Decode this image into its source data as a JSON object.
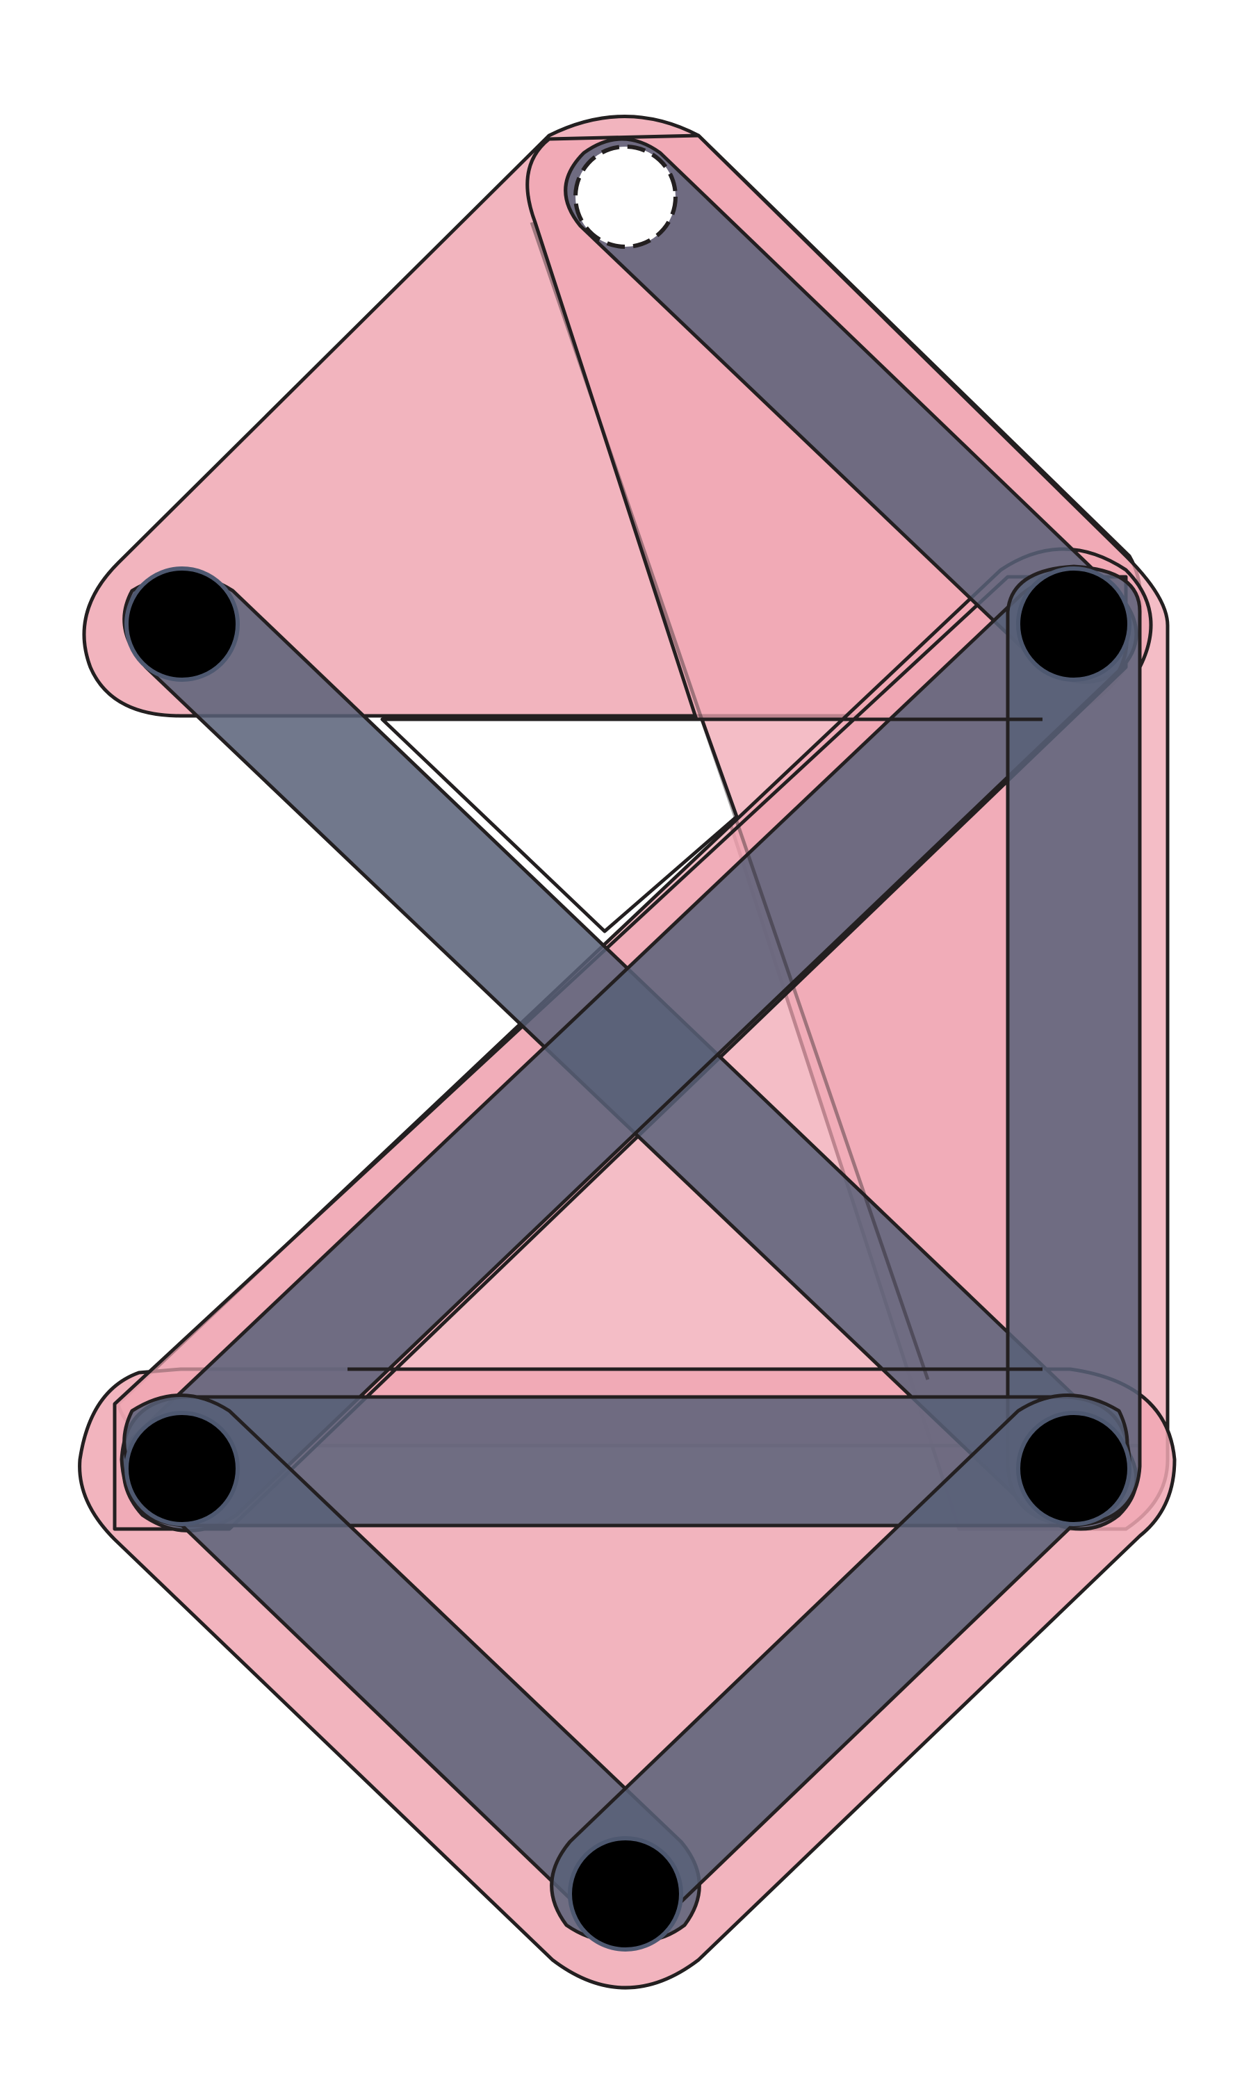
{
  "diagram": {
    "type": "hypergraph",
    "vertices": [
      {
        "id": "v_top",
        "style": "open-dashed"
      },
      {
        "id": "v_left_upper",
        "style": "filled"
      },
      {
        "id": "v_right_upper",
        "style": "filled"
      },
      {
        "id": "v_left_lower",
        "style": "filled"
      },
      {
        "id": "v_right_lower",
        "style": "filled"
      },
      {
        "id": "v_bottom",
        "style": "filled"
      }
    ],
    "edges": [
      {
        "id": "e1",
        "members": [
          "v_top",
          "v_right_upper"
        ]
      },
      {
        "id": "e2",
        "members": [
          "v_left_upper",
          "v_right_lower"
        ]
      },
      {
        "id": "e3",
        "members": [
          "v_right_upper",
          "v_left_lower"
        ]
      },
      {
        "id": "e4",
        "members": [
          "v_right_upper",
          "v_right_lower"
        ]
      },
      {
        "id": "e5",
        "members": [
          "v_left_lower",
          "v_right_lower"
        ]
      },
      {
        "id": "e6",
        "members": [
          "v_left_lower",
          "v_bottom"
        ]
      },
      {
        "id": "e7",
        "members": [
          "v_right_lower",
          "v_bottom"
        ]
      }
    ],
    "hyperedges": [
      {
        "id": "h1",
        "members": [
          "v_top",
          "v_left_upper",
          "v_right_upper"
        ]
      },
      {
        "id": "h2",
        "members": [
          "v_top",
          "v_right_upper",
          "v_right_lower"
        ]
      },
      {
        "id": "h3",
        "members": [
          "v_left_lower",
          "v_right_lower",
          "v_bottom"
        ]
      },
      {
        "id": "h4",
        "members": [
          "v_right_upper",
          "v_left_lower",
          "v_right_lower"
        ]
      }
    ],
    "colors": {
      "hyperedge_fill": "#f0a7b3",
      "edge_fill": "#586078",
      "vertex_fill": "#000000",
      "outline": "#231f20",
      "open_vertex_fill": "#ffffff"
    }
  }
}
